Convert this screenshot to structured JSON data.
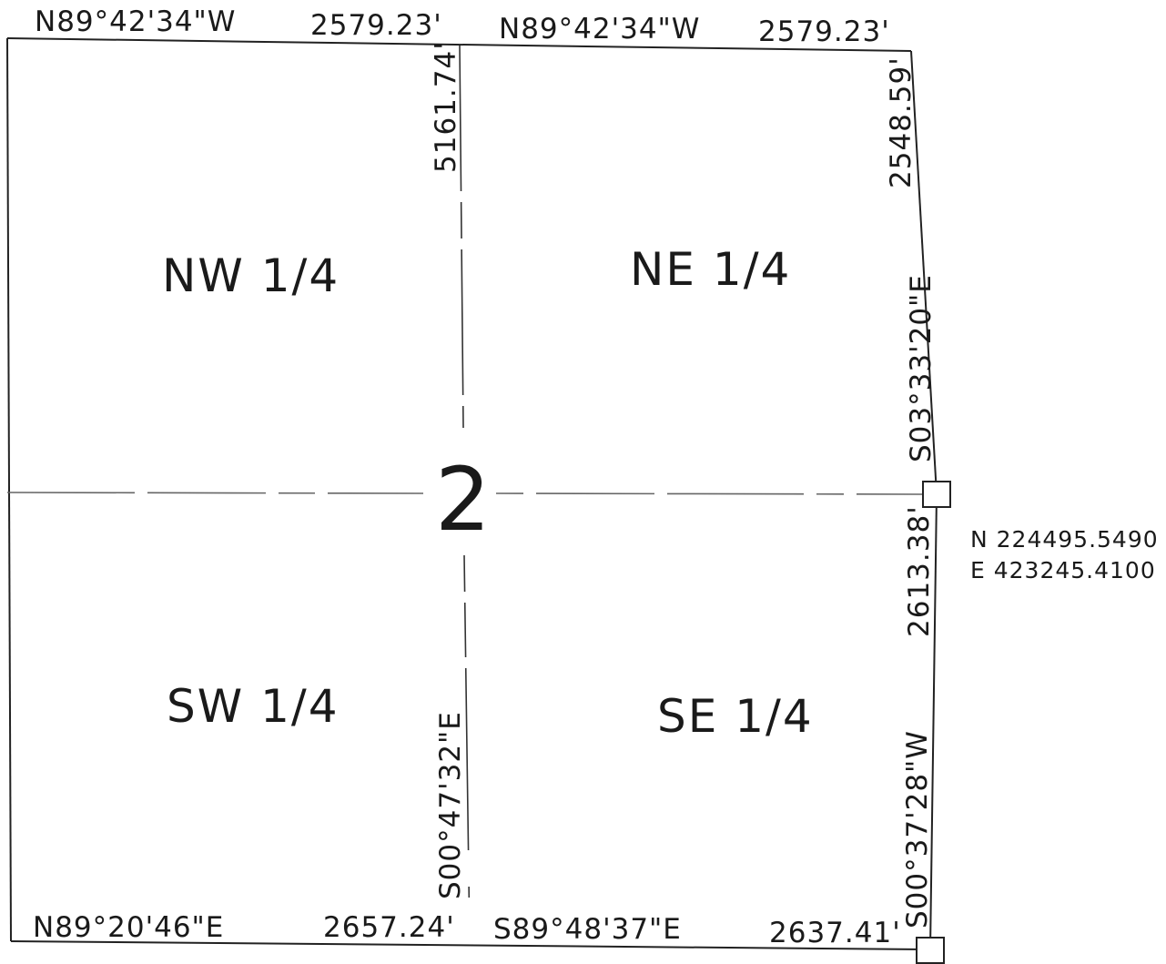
{
  "section_number": "2",
  "quarters": {
    "nw": "NW 1/4",
    "ne": "NE 1/4",
    "sw": "SW 1/4",
    "se": "SE 1/4"
  },
  "north_line": {
    "west_bearing": "N89°42'34\"W",
    "west_distance": "2579.23'",
    "east_bearing": "N89°42'34\"W",
    "east_distance": "2579.23'"
  },
  "south_line": {
    "west_bearing": "N89°20'46\"E",
    "west_distance": "2657.24'",
    "east_bearing": "S89°48'37\"E",
    "east_distance": "2637.41'"
  },
  "center_line": {
    "north_distance": "5161.74'",
    "south_bearing": "S00°47'32\"E"
  },
  "east_line": {
    "north_distance": "2548.59'",
    "north_bearing": "S03°33'20\"E",
    "south_distance": "2613.38'",
    "south_bearing": "S00°37'28\"W"
  },
  "monument": {
    "northing": "N 224495.5490",
    "easting": "E 423245.4100"
  }
}
